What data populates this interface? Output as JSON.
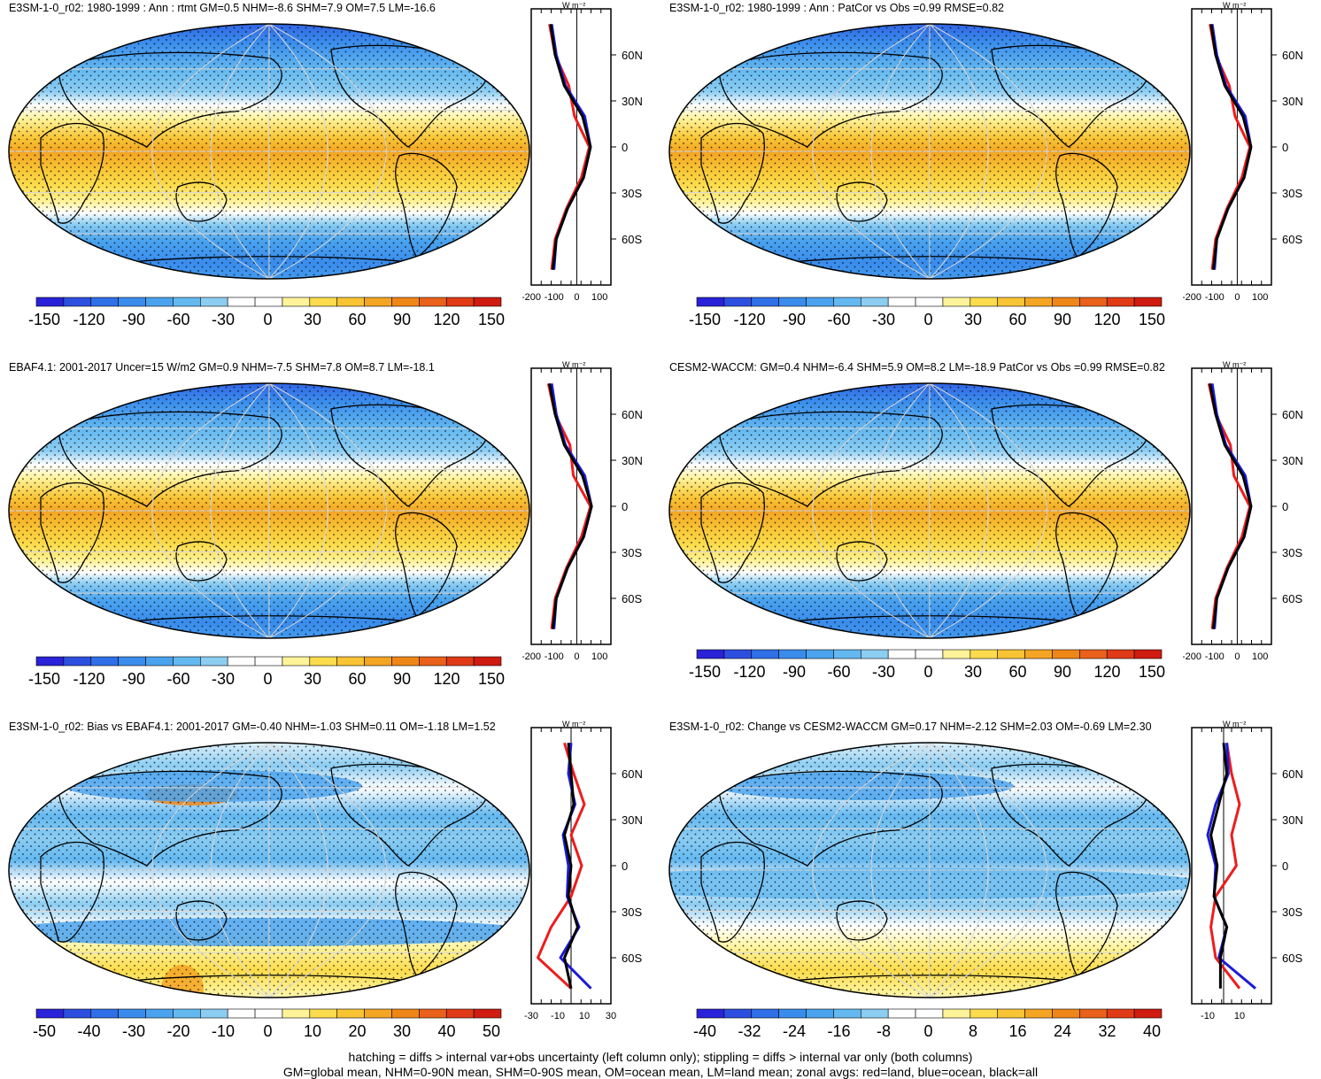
{
  "panels": [
    {
      "id": "p1",
      "title": "E3SM-1-0_r02: 1980-1999 : Ann : rtmt GM=0.5 NHM=-8.6 SHM=7.9 OM=7.5 LM=-16.6",
      "colorbar": [
        "-150",
        "-120",
        "-90",
        "-60",
        "-30",
        "0",
        "30",
        "60",
        "90",
        "120",
        "150"
      ],
      "zonal_xticks": [
        "-200",
        "-100",
        "0",
        "100"
      ],
      "lat_ticks": [
        "60N",
        "30N",
        "0",
        "30S",
        "60S"
      ],
      "units": "W m⁻²"
    },
    {
      "id": "p2",
      "title": "E3SM-1-0_r02: 1980-1999 : Ann : PatCor vs Obs =0.99 RMSE=0.82",
      "colorbar": [
        "-150",
        "-120",
        "-90",
        "-60",
        "-30",
        "0",
        "30",
        "60",
        "90",
        "120",
        "150"
      ],
      "zonal_xticks": [
        "-200",
        "-100",
        "0",
        "100"
      ],
      "lat_ticks": [
        "60N",
        "30N",
        "0",
        "30S",
        "60S"
      ],
      "units": "W m⁻²"
    },
    {
      "id": "p3",
      "title": "EBAF4.1: 2001-2017 Uncer=15 W/m2 GM=0.9 NHM=-7.5 SHM=7.8 OM=8.7 LM=-18.1",
      "colorbar": [
        "-150",
        "-120",
        "-90",
        "-60",
        "-30",
        "0",
        "30",
        "60",
        "90",
        "120",
        "150"
      ],
      "zonal_xticks": [
        "-200",
        "-100",
        "0",
        "100"
      ],
      "lat_ticks": [
        "60N",
        "30N",
        "0",
        "30S",
        "60S"
      ],
      "units": "W m⁻²"
    },
    {
      "id": "p4",
      "title": "CESM2-WACCM: GM=0.4 NHM=-6.4 SHM=5.9 OM=8.2 LM=-18.9 PatCor vs Obs =0.99 RMSE=0.82",
      "colorbar": [
        "-150",
        "-120",
        "-90",
        "-60",
        "-30",
        "0",
        "30",
        "60",
        "90",
        "120",
        "150"
      ],
      "zonal_xticks": [
        "-200",
        "-100",
        "0",
        "100"
      ],
      "lat_ticks": [
        "60N",
        "30N",
        "0",
        "30S",
        "60S"
      ],
      "units": "W m⁻²"
    },
    {
      "id": "p5",
      "title": "E3SM-1-0_r02: Bias vs EBAF4.1: 2001-2017 GM=-0.40 NHM=-1.03 SHM=0.11 OM=-1.18 LM=1.52",
      "colorbar": [
        "-50",
        "-40",
        "-30",
        "-20",
        "-10",
        "0",
        "10",
        "20",
        "30",
        "40",
        "50"
      ],
      "zonal_xticks": [
        "-30",
        "-10",
        "10",
        "30"
      ],
      "lat_ticks": [
        "60N",
        "30N",
        "0",
        "30S",
        "60S"
      ],
      "units": "W m⁻²"
    },
    {
      "id": "p6",
      "title": "E3SM-1-0_r02: Change vs CESM2-WACCM GM=0.17 NHM=-2.12 SHM=2.03 OM=-0.69 LM=2.30",
      "colorbar": [
        "-40",
        "-32",
        "-24",
        "-16",
        "-8",
        "0",
        "8",
        "16",
        "24",
        "32",
        "40"
      ],
      "zonal_xticks": [
        "-10",
        "10"
      ],
      "lat_ticks": [
        "60N",
        "30N",
        "0",
        "30S",
        "60S"
      ],
      "units": "W m⁻²"
    }
  ],
  "footer": {
    "line1": "hatching = diffs > internal var+obs uncertainty (left column only); stippling = diffs > internal var only (both columns)",
    "line2": "GM=global mean, NHM=0-90N mean, SHM=0-90S mean, OM=ocean mean, LM=land mean; zonal avgs: red=land, blue=ocean, black=all"
  },
  "colors": {
    "palette": [
      "#2a22d8",
      "#2d4fe0",
      "#2f6fe8",
      "#3a8cec",
      "#4aa3ee",
      "#63b8f0",
      "#8ccdf2",
      "#ffffff",
      "#ffffff",
      "#fff39a",
      "#fcdc4c",
      "#f8c434",
      "#f4a524",
      "#ef8618",
      "#e9611a",
      "#e03a16",
      "#cf1b10"
    ],
    "land_zonal": "#ee1c1c",
    "ocean_zonal": "#1b1bd9",
    "all_zonal": "#000000"
  },
  "chart_data": [
    {
      "type": "heatmap",
      "panel": "p1",
      "lat": [
        80,
        60,
        40,
        20,
        0,
        -20,
        -40,
        -60,
        -80
      ],
      "zonal_all": [
        -115,
        -95,
        -55,
        25,
        60,
        30,
        -40,
        -90,
        -105
      ],
      "zonal_land": [
        -120,
        -95,
        -35,
        -10,
        55,
        20,
        -45,
        -95,
        -110
      ],
      "zonal_ocean": [
        -110,
        -90,
        -50,
        35,
        60,
        30,
        -40,
        -90,
        -100
      ],
      "xlim": [
        -200,
        150
      ]
    },
    {
      "type": "heatmap",
      "panel": "p2",
      "lat": [
        80,
        60,
        40,
        20,
        0,
        -20,
        -40,
        -60,
        -80
      ],
      "zonal_all": [
        -115,
        -95,
        -55,
        25,
        60,
        30,
        -40,
        -90,
        -105
      ],
      "zonal_land": [
        -120,
        -95,
        -35,
        -10,
        55,
        20,
        -45,
        -95,
        -110
      ],
      "zonal_ocean": [
        -110,
        -90,
        -50,
        35,
        60,
        30,
        -40,
        -90,
        -100
      ],
      "xlim": [
        -200,
        150
      ]
    },
    {
      "type": "heatmap",
      "panel": "p3",
      "lat": [
        80,
        60,
        40,
        20,
        0,
        -20,
        -40,
        -60,
        -80
      ],
      "zonal_all": [
        -120,
        -95,
        -55,
        25,
        65,
        30,
        -40,
        -90,
        -105
      ],
      "zonal_land": [
        -125,
        -95,
        -30,
        -15,
        60,
        20,
        -45,
        -95,
        -110
      ],
      "zonal_ocean": [
        -110,
        -90,
        -50,
        35,
        65,
        30,
        -40,
        -90,
        -100
      ],
      "xlim": [
        -200,
        150
      ]
    },
    {
      "type": "heatmap",
      "panel": "p4",
      "lat": [
        80,
        60,
        40,
        20,
        0,
        -20,
        -40,
        -60,
        -80
      ],
      "zonal_all": [
        -120,
        -95,
        -55,
        25,
        60,
        30,
        -40,
        -90,
        -105
      ],
      "zonal_land": [
        -125,
        -95,
        -30,
        -15,
        55,
        20,
        -45,
        -95,
        -110
      ],
      "zonal_ocean": [
        -110,
        -90,
        -50,
        35,
        60,
        30,
        -40,
        -90,
        -100
      ],
      "xlim": [
        -200,
        150
      ]
    },
    {
      "type": "heatmap",
      "panel": "p5",
      "lat": [
        80,
        60,
        40,
        20,
        0,
        -20,
        -40,
        -60,
        -80
      ],
      "zonal_all": [
        -2,
        0,
        2,
        -5,
        0,
        -2,
        5,
        -5,
        0
      ],
      "zonal_land": [
        -5,
        2,
        10,
        0,
        8,
        0,
        -15,
        -25,
        0
      ],
      "zonal_ocean": [
        0,
        -2,
        3,
        -6,
        -2,
        -3,
        6,
        -8,
        15
      ],
      "xlim": [
        -30,
        30
      ]
    },
    {
      "type": "heatmap",
      "panel": "p6",
      "lat": [
        80,
        60,
        40,
        20,
        0,
        -20,
        -40,
        -60,
        -80
      ],
      "zonal_all": [
        0,
        2,
        -3,
        -8,
        -4,
        -6,
        2,
        -2,
        -2
      ],
      "zonal_land": [
        2,
        5,
        10,
        5,
        8,
        -5,
        -8,
        -5,
        10
      ],
      "zonal_ocean": [
        2,
        3,
        -5,
        -10,
        -5,
        -6,
        2,
        -3,
        20
      ],
      "xlim": [
        -20,
        30
      ]
    }
  ]
}
